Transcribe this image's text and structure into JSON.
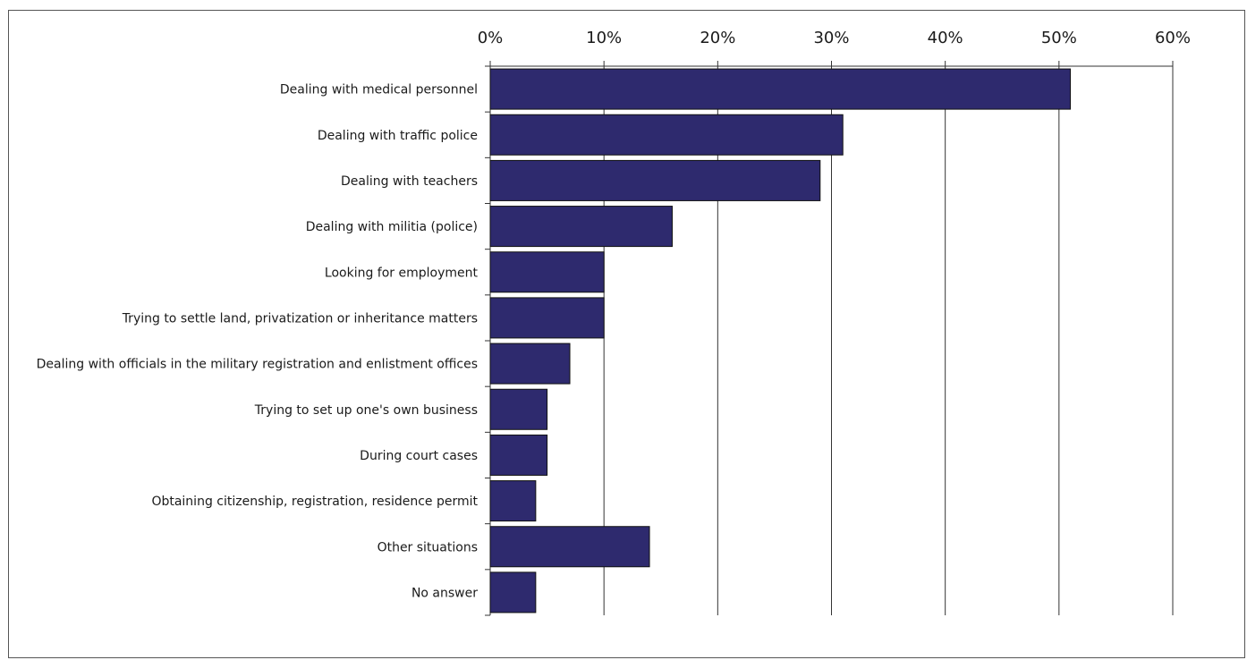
{
  "chart_data": {
    "type": "bar",
    "orientation": "horizontal",
    "title": "",
    "xlabel": "",
    "ylabel": "",
    "xlim": [
      0,
      60
    ],
    "x_ticks": [
      "0%",
      "10%",
      "20%",
      "30%",
      "40%",
      "50%",
      "60%"
    ],
    "x_tick_values": [
      0,
      10,
      20,
      30,
      40,
      50,
      60
    ],
    "grid": true,
    "legend": "none",
    "bar_color": "#2e2a6e",
    "categories": [
      "Dealing with medical personnel",
      "Dealing with traffic police",
      "Dealing with teachers",
      "Dealing with militia (police)",
      "Looking for employment",
      "Trying to settle land, privatization or inheritance matters",
      "Dealing with officials in the military registration and enlistment offices",
      "Trying to set up one's own business",
      "During court cases",
      "Obtaining citizenship, registration, residence permit",
      "Other situations",
      "No answer"
    ],
    "values": [
      51,
      31,
      29,
      16,
      10,
      10,
      7,
      5,
      5,
      4,
      14,
      4
    ]
  }
}
